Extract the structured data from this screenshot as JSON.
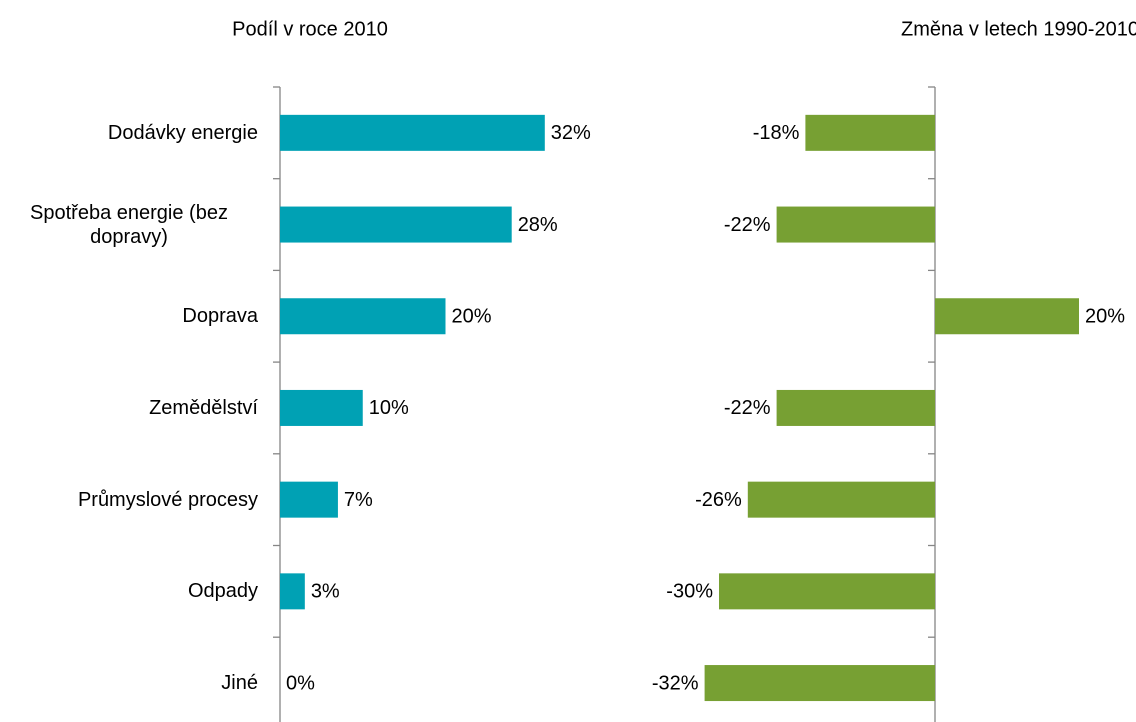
{
  "chart_data": [
    {
      "type": "bar",
      "orientation": "horizontal",
      "title": "Podíl v roce 2010",
      "categories": [
        "Dodávky energie",
        "Spotřeba energie (bez dopravy)",
        "Doprava",
        "Zemědělství",
        "Průmyslové procesy",
        "Odpady",
        "Jiné"
      ],
      "values": [
        32,
        28,
        20,
        10,
        7,
        3,
        0
      ],
      "value_labels": [
        "32%",
        "28%",
        "20%",
        "10%",
        "7%",
        "3%",
        "0%"
      ],
      "color": "#00a1b4",
      "xlim": [
        0,
        40
      ]
    },
    {
      "type": "bar",
      "orientation": "horizontal",
      "title": "Změna v letech 1990-2010",
      "values": [
        -18,
        -22,
        20,
        -22,
        -26,
        -30,
        -32
      ],
      "value_labels": [
        "-18%",
        "-22%",
        "20%",
        "-22%",
        "-26%",
        "-30%",
        "-32%"
      ],
      "color": "#77a033",
      "xlim": [
        -40,
        25
      ]
    }
  ]
}
